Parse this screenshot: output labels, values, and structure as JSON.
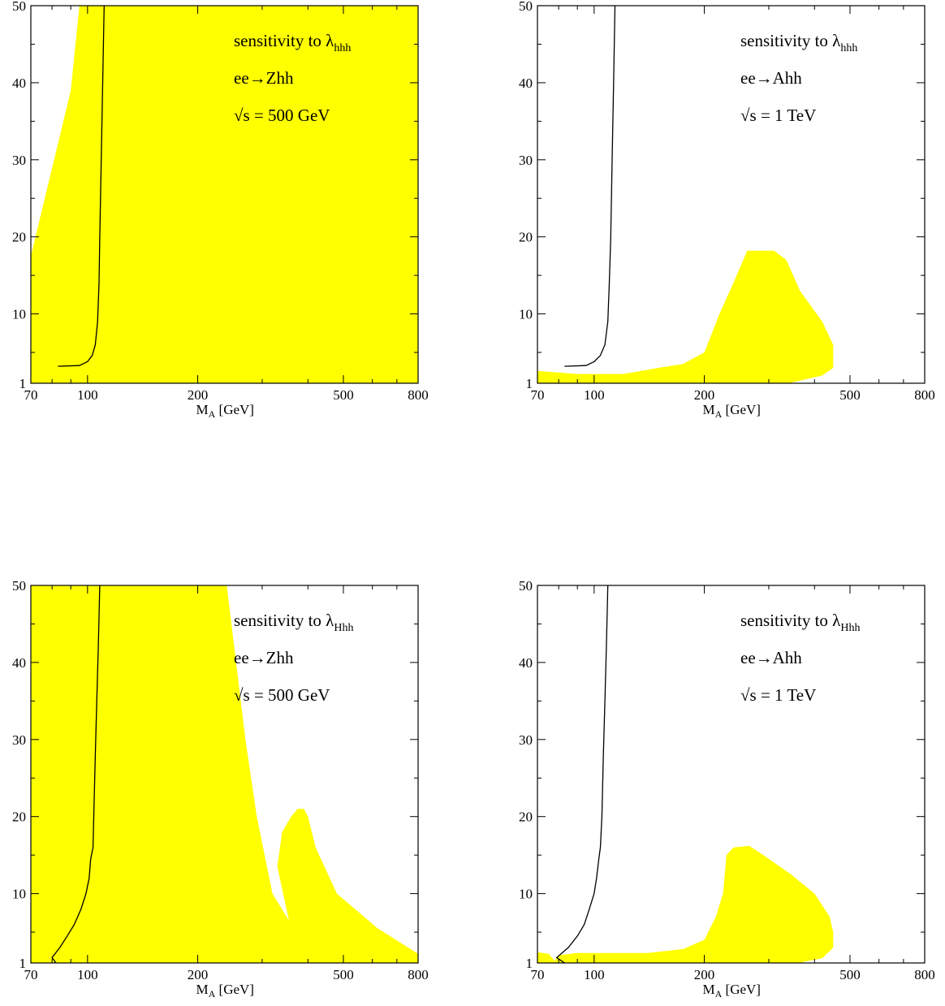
{
  "colors": {
    "region": "#ffff00",
    "line": "#000000",
    "frame": "#000000"
  },
  "chart_data": [
    {
      "type": "area",
      "id": "top-left",
      "xlabel": "M",
      "xlabel_sub": "A",
      "xlabel_unit": " [GeV]",
      "ylabel": "",
      "xscale": "log",
      "xlim": [
        70,
        800
      ],
      "ylim": [
        1,
        50
      ],
      "xticks": [
        70,
        100,
        200,
        500,
        800
      ],
      "xtick_labels": [
        "70",
        "100",
        "200",
        "500",
        "800"
      ],
      "yticks": [
        1,
        10,
        20,
        30,
        40,
        50
      ],
      "ytick_labels": [
        "1",
        "10",
        "20",
        "30",
        "40",
        "50"
      ],
      "annotations": [
        {
          "text": "sensitivity to λ",
          "sub": "hhh"
        },
        {
          "text": "ee→Zhh",
          "sub": ""
        },
        {
          "text": "√s = 500 GeV",
          "sub": ""
        }
      ],
      "regions": [
        [
          [
            70,
            17.5
          ],
          [
            90,
            39
          ],
          [
            95,
            50
          ],
          [
            800,
            50
          ],
          [
            800,
            1
          ],
          [
            70,
            1
          ]
        ]
      ],
      "lines": [
        [
          [
            83,
            3.2
          ],
          [
            95,
            3.3
          ],
          [
            100,
            3.8
          ],
          [
            103,
            4.6
          ],
          [
            105,
            6
          ],
          [
            106.5,
            9
          ],
          [
            107.5,
            14
          ],
          [
            108,
            20
          ],
          [
            109,
            30
          ],
          [
            110,
            40
          ],
          [
            111,
            50
          ]
        ]
      ]
    },
    {
      "type": "area",
      "id": "top-right",
      "xlabel": "M",
      "xlabel_sub": "A",
      "xlabel_unit": " [GeV]",
      "ylabel": "",
      "xscale": "log",
      "xlim": [
        70,
        800
      ],
      "ylim": [
        1,
        50
      ],
      "xticks": [
        70,
        100,
        200,
        500,
        800
      ],
      "xtick_labels": [
        "70",
        "100",
        "200",
        "500",
        "800"
      ],
      "yticks": [
        1,
        10,
        20,
        30,
        40,
        50
      ],
      "ytick_labels": [
        "1",
        "10",
        "20",
        "30",
        "40",
        "50"
      ],
      "annotations": [
        {
          "text": "sensitivity to λ",
          "sub": "hhh"
        },
        {
          "text": "ee→Ahh",
          "sub": ""
        },
        {
          "text": "√s = 1 TeV",
          "sub": ""
        }
      ],
      "regions": [
        [
          [
            70,
            2.6
          ],
          [
            90,
            2.2
          ],
          [
            120,
            2.2
          ],
          [
            150,
            3
          ],
          [
            175,
            3.5
          ],
          [
            200,
            5
          ],
          [
            220,
            10
          ],
          [
            240,
            14
          ],
          [
            262,
            18.2
          ],
          [
            310,
            18.2
          ],
          [
            335,
            17
          ],
          [
            365,
            13
          ],
          [
            420,
            9
          ],
          [
            450,
            6
          ],
          [
            450,
            3
          ],
          [
            420,
            2
          ],
          [
            340,
            1
          ],
          [
            70,
            1
          ]
        ]
      ],
      "lines": [
        [
          [
            83,
            3.2
          ],
          [
            95,
            3.3
          ],
          [
            100,
            3.8
          ],
          [
            104,
            4.6
          ],
          [
            107,
            6
          ],
          [
            109,
            9
          ],
          [
            110,
            14
          ],
          [
            111,
            20
          ],
          [
            112,
            30
          ],
          [
            113,
            40
          ],
          [
            114,
            50
          ]
        ]
      ]
    },
    {
      "type": "area",
      "id": "bottom-left",
      "xlabel": "M",
      "xlabel_sub": "A",
      "xlabel_unit": " [GeV]",
      "ylabel": "",
      "xscale": "log",
      "xlim": [
        70,
        800
      ],
      "ylim": [
        1,
        50
      ],
      "xticks": [
        70,
        100,
        200,
        500,
        800
      ],
      "xtick_labels": [
        "70",
        "100",
        "200",
        "500",
        "800"
      ],
      "yticks": [
        1,
        10,
        20,
        30,
        40,
        50
      ],
      "ytick_labels": [
        "1",
        "10",
        "20",
        "30",
        "40",
        "50"
      ],
      "annotations": [
        {
          "text": "sensitivity to λ",
          "sub": "Hhh"
        },
        {
          "text": "ee→Zhh",
          "sub": ""
        },
        {
          "text": "√s = 500 GeV",
          "sub": ""
        }
      ],
      "regions": [
        [
          [
            70,
            1
          ],
          [
            70,
            50
          ],
          [
            240,
            50
          ],
          [
            270,
            30
          ],
          [
            290,
            20
          ],
          [
            320,
            10
          ],
          [
            355,
            6.5
          ],
          [
            330,
            13.5
          ],
          [
            340,
            18
          ],
          [
            360,
            20
          ],
          [
            375,
            21
          ],
          [
            390,
            21
          ],
          [
            400,
            20
          ],
          [
            420,
            16
          ],
          [
            480,
            10
          ],
          [
            620,
            5.5
          ],
          [
            800,
            2.2
          ],
          [
            800,
            1
          ]
        ]
      ],
      "lines": [
        [
          [
            82,
            1
          ],
          [
            80,
            1.7
          ],
          [
            84,
            3
          ],
          [
            88,
            4.5
          ],
          [
            92,
            6
          ],
          [
            96,
            8
          ],
          [
            99,
            10
          ],
          [
            101,
            12
          ],
          [
            102,
            14.5
          ],
          [
            103.5,
            16
          ],
          [
            104,
            20
          ],
          [
            105,
            28
          ],
          [
            106,
            35
          ],
          [
            107,
            42
          ],
          [
            108,
            50
          ]
        ]
      ]
    },
    {
      "type": "area",
      "id": "bottom-right",
      "xlabel": "M",
      "xlabel_sub": "A",
      "xlabel_unit": " [GeV]",
      "ylabel": "",
      "xscale": "log",
      "xlim": [
        70,
        800
      ],
      "ylim": [
        1,
        50
      ],
      "xticks": [
        70,
        100,
        200,
        500,
        800
      ],
      "xtick_labels": [
        "70",
        "100",
        "200",
        "500",
        "800"
      ],
      "yticks": [
        1,
        10,
        20,
        30,
        40,
        50
      ],
      "ytick_labels": [
        "1",
        "10",
        "20",
        "30",
        "40",
        "50"
      ],
      "annotations": [
        {
          "text": "sensitivity to λ",
          "sub": "Hhh"
        },
        {
          "text": "ee→Ahh",
          "sub": ""
        },
        {
          "text": "√s = 1 TeV",
          "sub": ""
        }
      ],
      "regions": [
        [
          [
            70,
            1
          ],
          [
            70,
            2.4
          ],
          [
            75,
            2.2
          ],
          [
            78,
            1.3
          ],
          [
            80,
            2
          ],
          [
            90,
            2.3
          ],
          [
            140,
            2.3
          ],
          [
            175,
            2.8
          ],
          [
            200,
            4
          ],
          [
            215,
            7
          ],
          [
            225,
            10
          ],
          [
            230,
            15
          ],
          [
            240,
            16
          ],
          [
            265,
            16.2
          ],
          [
            290,
            15
          ],
          [
            345,
            12.5
          ],
          [
            400,
            10
          ],
          [
            440,
            7
          ],
          [
            450,
            5
          ],
          [
            450,
            3
          ],
          [
            420,
            1.6
          ],
          [
            360,
            1
          ],
          [
            70,
            1
          ]
        ]
      ],
      "lines": [
        [
          [
            83,
            1
          ],
          [
            79,
            1.7
          ],
          [
            85,
            3
          ],
          [
            90,
            4.5
          ],
          [
            94,
            6
          ],
          [
            97,
            8
          ],
          [
            100,
            10
          ],
          [
            101.5,
            12
          ],
          [
            103,
            14.5
          ],
          [
            104,
            16
          ],
          [
            105,
            20
          ],
          [
            106,
            28
          ],
          [
            107,
            35
          ],
          [
            108,
            42
          ],
          [
            109,
            50
          ]
        ]
      ]
    }
  ]
}
